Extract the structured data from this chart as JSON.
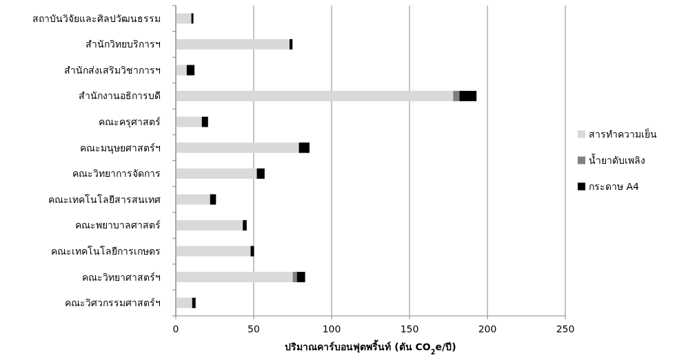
{
  "chart_data": {
    "type": "bar",
    "orientation": "horizontal",
    "stacked": true,
    "categories": [
      "สถาบันวิจัยและศิลปวัฒนธรรม",
      "สำนักวิทยบริการฯ",
      "สำนักส่งเสริมวิชาการฯ",
      "สำนักงานอธิการบดี",
      "คณะครุศาสตร์",
      "คณะมนุษยศาสตร์ฯ",
      "คณะวิทยาการจัดการ",
      "คณะเทคโนโลยีสารสนเทศ",
      "คณะพยาบาลศาสตร์",
      "คณะเทคโนโลยีการเกษตร",
      "คณะวิทยาศาสตร์ฯ",
      "คณะวิศวกรรมศาสตร์ฯ"
    ],
    "series": [
      {
        "name": "สารทำความเย็น",
        "color": "#d9d9d9",
        "values": [
          10,
          73,
          7,
          178,
          16.7,
          79,
          52,
          22,
          43,
          48,
          75,
          10.5
        ]
      },
      {
        "name": "น้ำยาดับเพลิง",
        "color": "#808080",
        "values": [
          0,
          0,
          0,
          4,
          0,
          0,
          0,
          0,
          0,
          0,
          2.7,
          0
        ]
      },
      {
        "name": "กระดาษ A4",
        "color": "#000000",
        "values": [
          1.3,
          1.9,
          5,
          11,
          4,
          6.8,
          5,
          3.8,
          2.5,
          2.2,
          5.3,
          2.2
        ]
      }
    ],
    "xlim": [
      0,
      250
    ],
    "xticks": [
      0,
      50,
      100,
      150,
      200,
      250
    ],
    "xlabel": "ปริมาณคาร์บอนฟุตพริ้นท์  (ตัน CO$_{2}$e/ปี)",
    "grid": "x",
    "legend": "right"
  }
}
